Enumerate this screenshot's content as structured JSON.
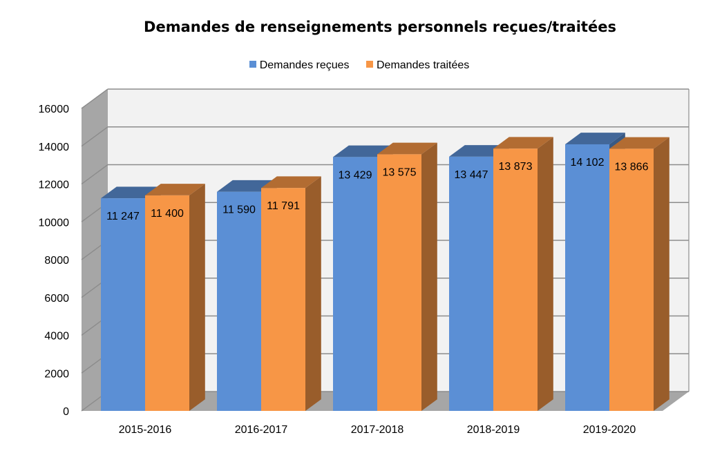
{
  "chart_data": {
    "type": "bar",
    "title": "Demandes de renseignements personnels reçues/traitées",
    "categories": [
      "2015-2016",
      "2016-2017",
      "2017-2018",
      "2018-2019",
      "2019-2020"
    ],
    "series": [
      {
        "name": "Demandes reçues",
        "color": "#5B8FD5",
        "values": [
          11247,
          11590,
          13429,
          13447,
          14102
        ],
        "labels": [
          "11 247",
          "11 590",
          "13 429",
          "13 447",
          "14 102"
        ]
      },
      {
        "name": "Demandes traitées",
        "color": "#F79646",
        "values": [
          11400,
          11791,
          13575,
          13873,
          13866
        ],
        "labels": [
          "11 400",
          "11 791",
          "13 575",
          "13 873",
          "13 866"
        ]
      }
    ],
    "y_ticks": [
      "0",
      "2000",
      "4000",
      "6000",
      "8000",
      "10000",
      "12000",
      "14000",
      "16000"
    ],
    "ylim": [
      0,
      16000
    ],
    "grid": true,
    "legend_position": "top",
    "style": "3d-column"
  }
}
